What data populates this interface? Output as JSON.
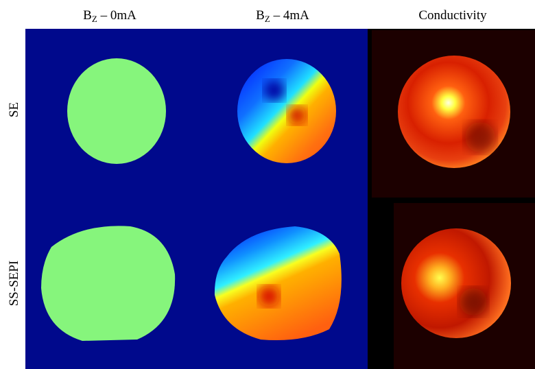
{
  "columns": [
    {
      "base": "B",
      "sub": "Z",
      "rest": " – 0mA"
    },
    {
      "base": "B",
      "sub": "Z",
      "rest": " – 4mA"
    },
    {
      "text": "Conductivity"
    }
  ],
  "rows": [
    "SE",
    "SS-SEPI"
  ]
}
